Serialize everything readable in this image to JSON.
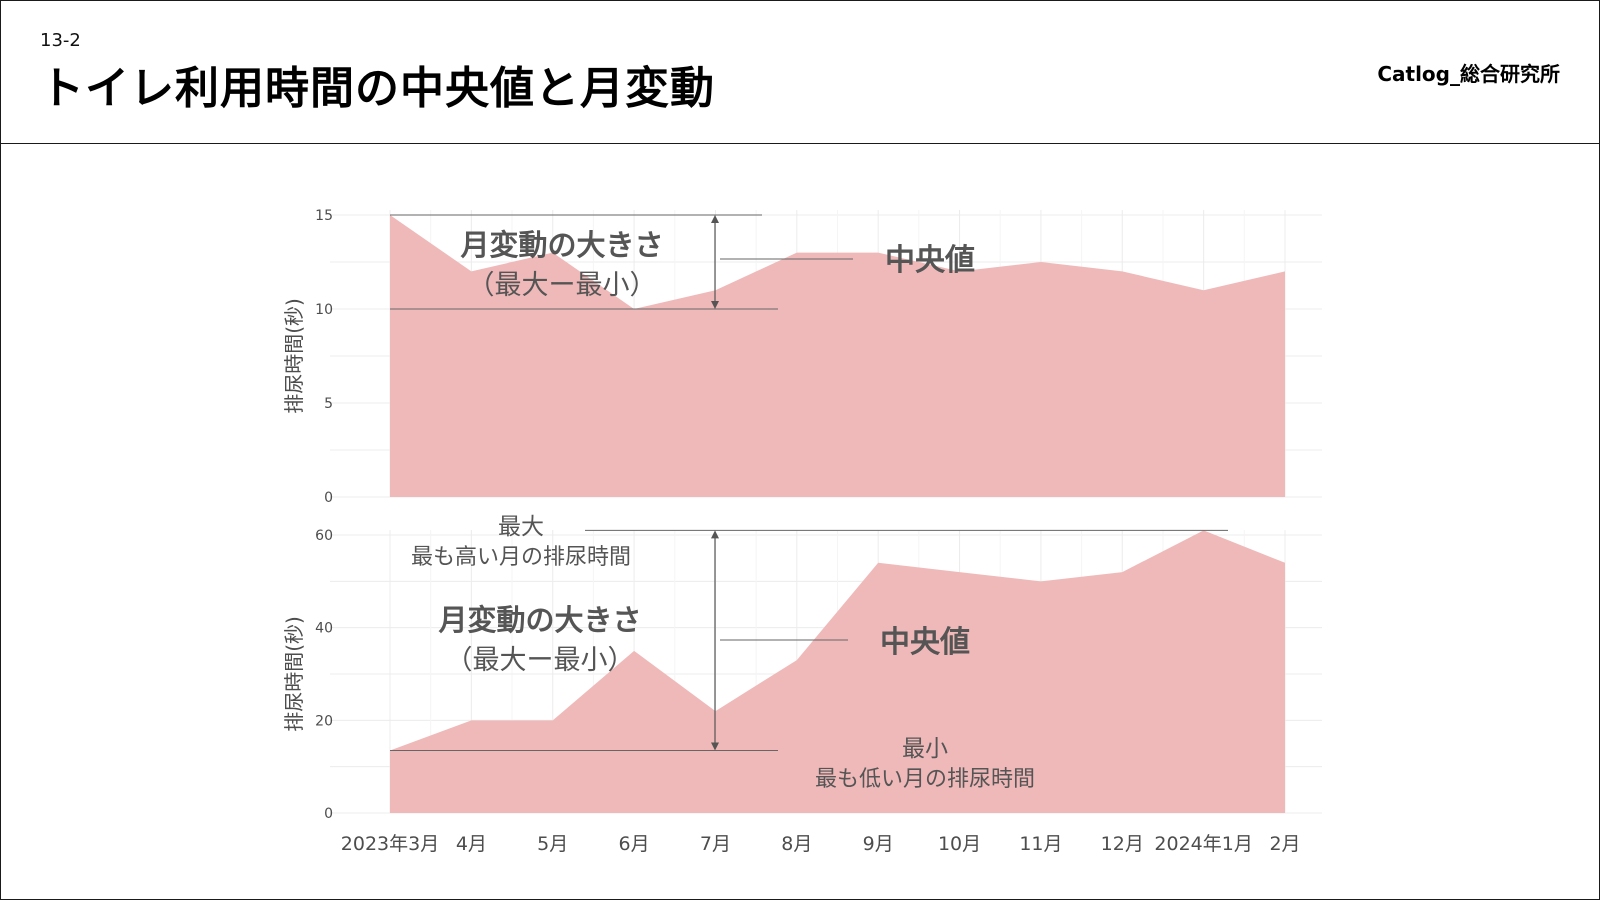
{
  "header": {
    "slide_number": "13-2",
    "title": "トイレ利用時間の中央値と月変動",
    "brand": "Catlog_総合研究所"
  },
  "chart_data": [
    {
      "type": "area",
      "panel": "top",
      "ylabel": "排尿時間(秒)",
      "ylim": [
        0,
        15
      ],
      "yticks": [
        0,
        5,
        10,
        15
      ],
      "grid": true,
      "color": "#efb9b9",
      "series": [
        {
          "values": [
            15,
            12,
            13,
            10,
            11,
            13,
            13,
            12,
            12.5,
            12,
            11,
            12
          ]
        }
      ],
      "annotations": {
        "range_label_1": "月変動の大きさ",
        "range_label_2": "（最大ー最小）",
        "median_label": "中央値"
      }
    },
    {
      "type": "area",
      "panel": "bottom",
      "ylabel": "排尿時間(秒)",
      "ylim": [
        0,
        60
      ],
      "yticks": [
        0,
        20,
        40,
        60
      ],
      "grid": true,
      "color": "#efb9b9",
      "series": [
        {
          "values": [
            13.5,
            20,
            20,
            35,
            22,
            33,
            54,
            52,
            50,
            52,
            61,
            54
          ]
        }
      ],
      "annotations": {
        "max_label_1": "最大",
        "max_label_2": "最も高い月の排尿時間",
        "range_label_1": "月変動の大きさ",
        "range_label_2": "（最大ー最小）",
        "median_label": "中央値",
        "min_label_1": "最小",
        "min_label_2": "最も低い月の排尿時間"
      }
    }
  ],
  "x_categories": [
    "2023年3月",
    "4月",
    "5月",
    "6月",
    "7月",
    "8月",
    "9月",
    "10月",
    "11月",
    "12月",
    "2024年1月",
    "2月"
  ]
}
